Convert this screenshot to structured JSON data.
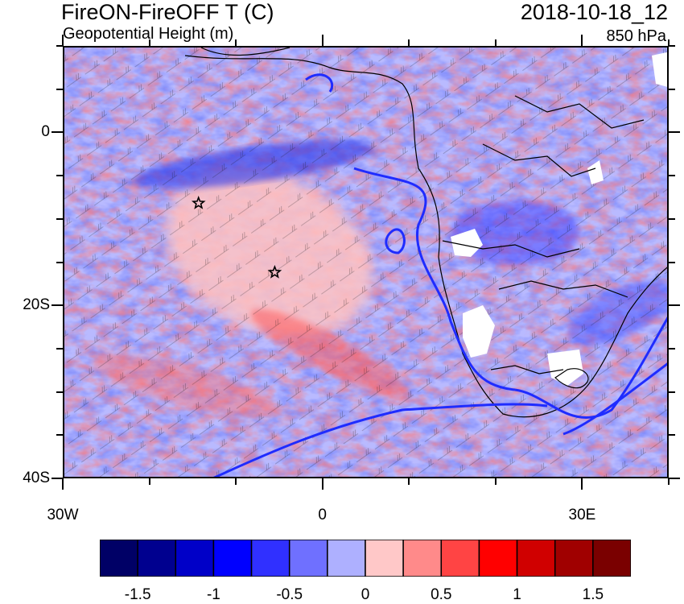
{
  "titles": {
    "main": "FireON-FireOFF T (C)",
    "sub": "Geopotential Height (m)",
    "datetime": "2018-10-18_12",
    "level": "850 hPa"
  },
  "axes": {
    "x_ticks": [
      {
        "label": "30W",
        "lon": -30
      },
      {
        "label": "0",
        "lon": 0
      },
      {
        "label": "30E",
        "lon": 30
      }
    ],
    "y_ticks": [
      {
        "label": "0",
        "lat": 0
      },
      {
        "label": "20S",
        "lat": -20
      },
      {
        "label": "40S",
        "lat": -40
      }
    ],
    "lon_range": [
      -30,
      40
    ],
    "lat_range": [
      -40,
      10
    ]
  },
  "markers": [
    {
      "name": "star-marker",
      "lon": -14.5,
      "lat": -8
    },
    {
      "name": "star-marker",
      "lon": -5.7,
      "lat": -16
    }
  ],
  "colorbar": {
    "colors": [
      "#000066",
      "#00008f",
      "#0000c8",
      "#0000ff",
      "#3030ff",
      "#6f70ff",
      "#aeb0ff",
      "#ffc8c8",
      "#ff8a8a",
      "#ff4444",
      "#ff0000",
      "#d00000",
      "#a00000",
      "#7a0000"
    ],
    "labels": [
      {
        "text": "-1.5",
        "index": 1
      },
      {
        "text": "-1",
        "index": 3
      },
      {
        "text": "-0.5",
        "index": 5
      },
      {
        "text": "0",
        "index": 7
      },
      {
        "text": "0.5",
        "index": 9
      },
      {
        "text": "1",
        "index": 11
      },
      {
        "text": "1.5",
        "index": 13
      }
    ]
  }
}
